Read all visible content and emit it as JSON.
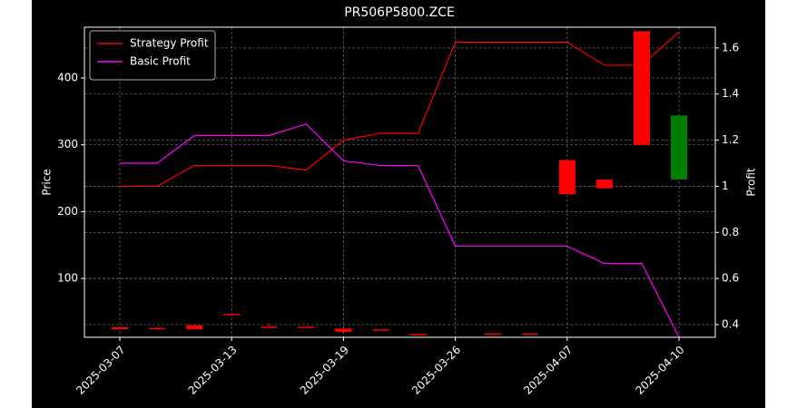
{
  "chart_data": {
    "type": "candlestick",
    "title": "PR506P5800.ZCE",
    "ylabel": "Price",
    "y2label": "Profit",
    "categories": [
      "2025-03-07",
      null,
      null,
      "2025-03-13",
      null,
      null,
      "2025-03-19",
      null,
      null,
      "2025-03-26",
      null,
      null,
      "2025-04-07",
      null,
      null,
      "2025-04-10"
    ],
    "open": [
      27,
      26,
      30,
      47,
      28,
      28,
      25,
      24,
      17,
      null,
      18,
      18,
      277,
      248,
      470,
      248
    ],
    "high": [
      27,
      29,
      30,
      47,
      33,
      28,
      25,
      24,
      17,
      null,
      18,
      18,
      277,
      248,
      470,
      344
    ],
    "low": [
      24,
      25,
      24,
      45,
      26,
      27,
      20,
      23,
      16,
      null,
      17,
      17,
      226,
      235,
      300,
      248
    ],
    "close": [
      24,
      25,
      24,
      45,
      27,
      27,
      20,
      23,
      16,
      null,
      17,
      17,
      226,
      235,
      300,
      344
    ],
    "up_color": "#008000",
    "down_color": "#ff0000",
    "series": [
      {
        "name": "Strategy Profit",
        "color": "#ff0000",
        "axis": "y2",
        "values": [
          1.0,
          1.0,
          1.09,
          1.09,
          1.09,
          1.07,
          1.2,
          1.23,
          1.23,
          1.625,
          1.625,
          1.625,
          1.625,
          1.525,
          1.525,
          1.67
        ]
      },
      {
        "name": "Basic Profit",
        "color": "#ff00ff",
        "axis": "y2",
        "values": [
          1.1,
          1.1,
          1.22,
          1.22,
          1.22,
          1.27,
          1.11,
          1.09,
          1.09,
          0.74,
          0.74,
          0.74,
          0.74,
          0.665,
          0.665,
          0.345
        ]
      }
    ],
    "ylim": [
      12,
      476
    ],
    "yticks": [
      100,
      200,
      300,
      400
    ],
    "y2lim": [
      0.345,
      1.69
    ],
    "y2ticks": [
      0.4,
      0.6,
      0.8,
      1.0,
      1.2,
      1.4,
      1.6
    ],
    "grid": true,
    "legend": "upper left"
  }
}
